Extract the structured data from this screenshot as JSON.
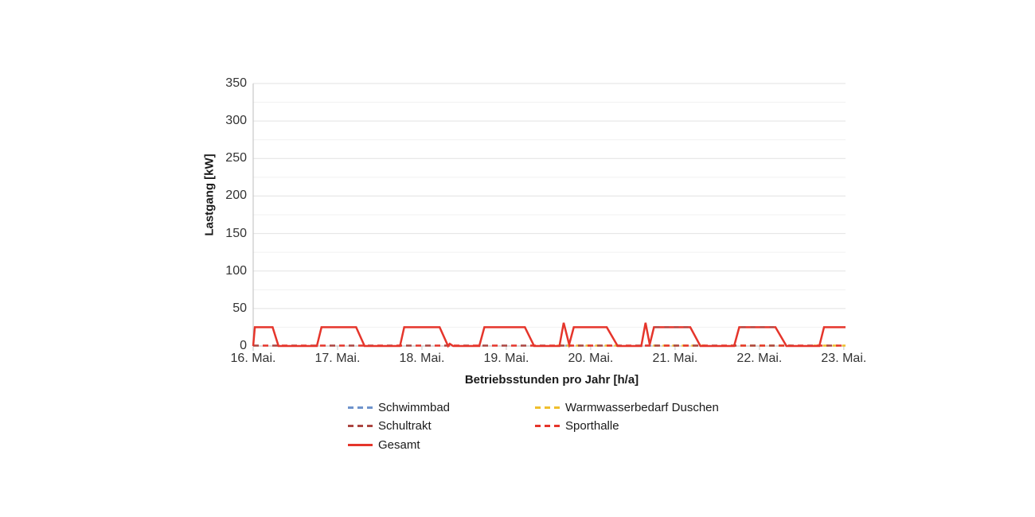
{
  "chart_data": {
    "type": "line",
    "title": "",
    "xlabel": "Betriebsstunden pro Jahr [h/a]",
    "ylabel": "Lastgang [kW]",
    "x_tick_labels": [
      "16. Mai.",
      "17. Mai.",
      "18. Mai.",
      "19. Mai.",
      "20. Mai.",
      "21. Mai.",
      "22. Mai.",
      "23. Mai."
    ],
    "x_range_days": [
      0,
      7.02
    ],
    "ylim": [
      0,
      350
    ],
    "y_major_ticks": [
      0,
      50,
      100,
      150,
      200,
      250,
      300,
      350
    ],
    "y_minor_step": 25,
    "grid": "horizontal-only",
    "legend_position": "bottom-left, two columns",
    "legend": [
      {
        "label": "Schwimmbad",
        "color": "#6e93cc",
        "style": "dashed",
        "column": 0,
        "row": 0
      },
      {
        "label": "Warmwasserbedarf Duschen",
        "color": "#efbf2d",
        "style": "dashed",
        "column": 1,
        "row": 0
      },
      {
        "label": "Schultrakt",
        "color": "#ac4541",
        "style": "dashed",
        "column": 0,
        "row": 1
      },
      {
        "label": "Sporthalle",
        "color": "#e5352b",
        "style": "dashed",
        "column": 1,
        "row": 1
      },
      {
        "label": "Gesamt",
        "color": "#e5352b",
        "style": "solid",
        "column": 0,
        "row": 2
      }
    ],
    "series": [
      {
        "name": "Schwimmbad",
        "style": "dashed",
        "color": "#6e93cc",
        "y_kw": 0,
        "visible_segments_days": [
          [
            3.7,
            3.79
          ],
          [
            4.65,
            4.74
          ]
        ]
      },
      {
        "name": "Warmwasserbedarf Duschen",
        "style": "dashed",
        "color": "#efbf2d",
        "y_kw": 0,
        "visible_segments_days": [
          [
            3.6,
            4.35
          ],
          [
            4.74,
            5.36
          ],
          [
            5.66,
            6.38
          ],
          [
            6.64,
            7.02
          ]
        ]
      },
      {
        "name": "Schultrakt",
        "style": "dashed",
        "color": "#ac4541",
        "y_kw": 0,
        "full_width": true
      },
      {
        "name": "Sporthalle",
        "style": "dashed",
        "color": "#e5352b",
        "y_kw": 0,
        "full_width": true
      },
      {
        "name": "Gesamt",
        "style": "solid",
        "color": "#e5352b",
        "points_day_kw": [
          [
            0.0,
            0
          ],
          [
            0.02,
            25
          ],
          [
            0.23,
            25
          ],
          [
            0.3,
            0
          ],
          [
            0.755,
            0
          ],
          [
            0.81,
            25
          ],
          [
            1.22,
            25
          ],
          [
            1.32,
            0
          ],
          [
            1.74,
            0
          ],
          [
            1.79,
            25
          ],
          [
            2.21,
            25
          ],
          [
            2.31,
            0
          ],
          [
            2.33,
            3
          ],
          [
            2.37,
            0
          ],
          [
            2.68,
            0
          ],
          [
            2.74,
            25
          ],
          [
            3.22,
            25
          ],
          [
            3.33,
            0
          ],
          [
            3.63,
            0
          ],
          [
            3.68,
            31
          ],
          [
            3.745,
            2
          ],
          [
            3.8,
            25
          ],
          [
            4.19,
            25
          ],
          [
            4.32,
            0
          ],
          [
            4.6,
            0
          ],
          [
            4.65,
            31
          ],
          [
            4.7,
            2
          ],
          [
            4.75,
            25
          ],
          [
            5.18,
            25
          ],
          [
            5.3,
            0
          ],
          [
            5.7,
            0
          ],
          [
            5.76,
            25
          ],
          [
            6.19,
            25
          ],
          [
            6.32,
            0
          ],
          [
            6.71,
            0
          ],
          [
            6.765,
            25
          ],
          [
            7.02,
            25
          ]
        ],
        "plateau_dark_dash_overlay_days": [
          [
            4.76,
            5.16
          ],
          [
            5.78,
            6.17
          ]
        ]
      }
    ]
  }
}
